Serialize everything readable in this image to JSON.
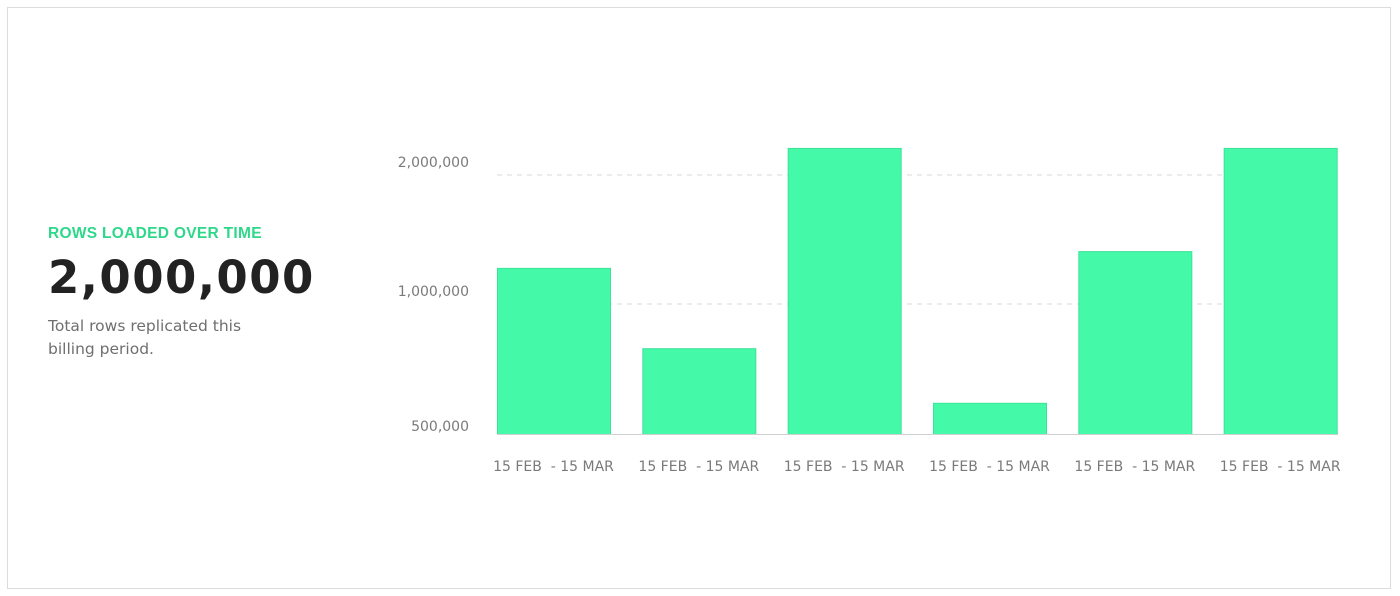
{
  "summary": {
    "label": "ROWS LOADED OVER TIME",
    "value": "2,000,000",
    "description": "Total rows replicated this billing period."
  },
  "colors": {
    "accent": "#2ed88a",
    "bar": "#44f9a8",
    "bar_stroke": "#3ce39a",
    "grid": "#d9d9d9",
    "axis": "#d0d0d0"
  },
  "chart_data": {
    "type": "bar",
    "categories": [
      "15 FEB  - 15 MAR",
      "15 FEB  - 15 MAR",
      "15 FEB  - 15 MAR",
      "15 FEB  - 15 MAR",
      "15 FEB  - 15 MAR",
      "15 FEB  - 15 MAR"
    ],
    "values": [
      1280000,
      830000,
      2210000,
      620000,
      1410000,
      2210000
    ],
    "y_ticks": [
      {
        "value": 500000,
        "label": "500,000"
      },
      {
        "value": 1000000,
        "label": "1,000,000"
      },
      {
        "value": 2000000,
        "label": "2,000,000"
      }
    ],
    "ylim": [
      500000,
      2200000
    ],
    "grid": true,
    "title": "",
    "xlabel": "",
    "ylabel": ""
  }
}
